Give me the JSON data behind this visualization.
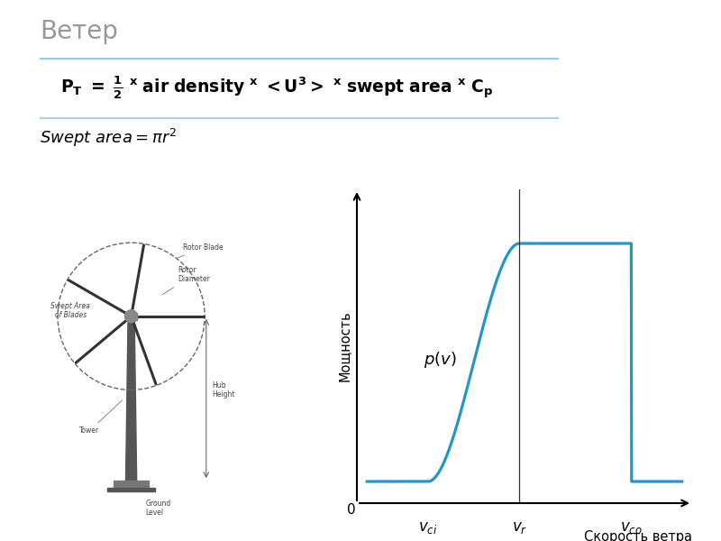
{
  "title": "Ветер",
  "title_fontsize": 20,
  "title_color": "#999999",
  "ylabel": "Мощность",
  "xlabel": "Скорость ветра",
  "pv_label": "$p(v)$",
  "v_ci_label": "$v_{ci}$",
  "v_r_label": "$v_r$",
  "v_co_label": "$v_{co}$",
  "curve_color": "#2196C8",
  "box_edge_color": "#90CAF9",
  "background_color": "#ffffff",
  "v_ci": 3.0,
  "v_r": 7.5,
  "v_co": 13.0,
  "x_max": 15.5,
  "power_max": 0.88,
  "turbine_color": "#555555",
  "label_color": "#444444",
  "annotation_fontsize": 5.5
}
